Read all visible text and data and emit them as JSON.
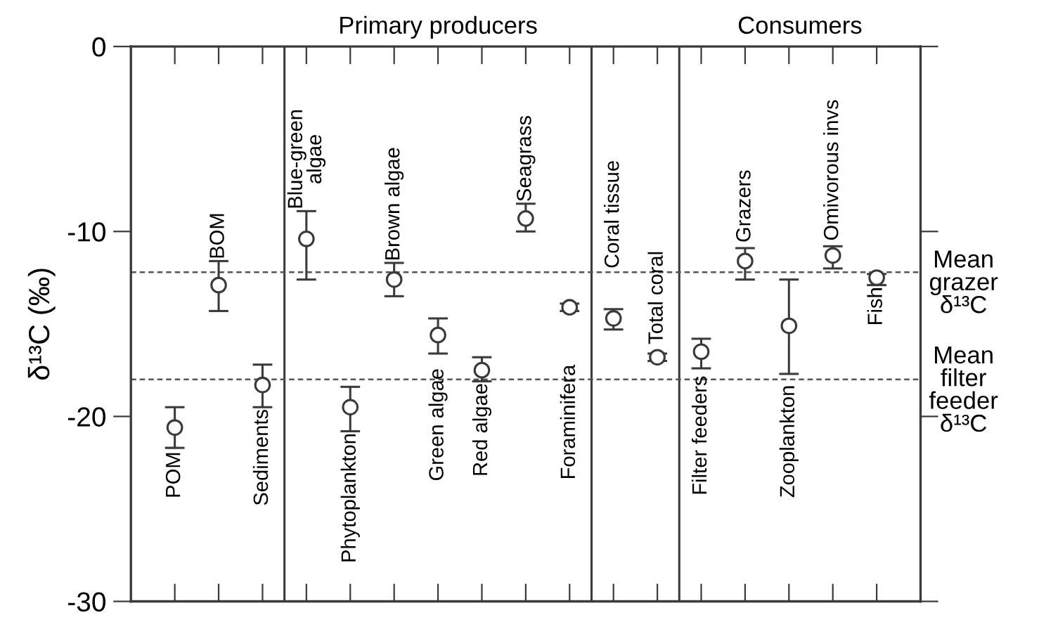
{
  "chart_data": {
    "type": "scatter",
    "ylabel": "δ¹³C (‰)",
    "categories": [
      null,
      null,
      null,
      null,
      null,
      null,
      null,
      null,
      null,
      null,
      null,
      null,
      null,
      null,
      null,
      null,
      null
    ],
    "values": [
      -20.6,
      -12.9,
      -18.3,
      -10.4,
      -19.5,
      -12.6,
      -15.6,
      -17.5,
      -9.3,
      -14.1,
      -14.7,
      -16.8,
      -16.5,
      -11.6,
      -15.1,
      -11.3,
      -12.5
    ],
    "errors": [
      [
        -21.7,
        -19.5
      ],
      [
        -14.3,
        -11.6
      ],
      [
        -19.5,
        -17.2
      ],
      [
        -12.6,
        -8.9
      ],
      [
        -20.8,
        -18.4
      ],
      [
        -13.5,
        -11.7
      ],
      [
        -16.6,
        -14.7
      ],
      [
        -18.1,
        -16.8
      ],
      [
        -10.0,
        -8.5
      ],
      [
        -14.3,
        -13.9
      ],
      [
        -15.3,
        -14.2
      ],
      [
        -17.0,
        -16.6
      ],
      [
        -17.4,
        -15.8
      ],
      [
        -12.6,
        -10.9
      ],
      [
        -17.7,
        -12.6
      ],
      [
        -12.0,
        -10.8
      ],
      [
        -12.9,
        -12.3
      ]
    ],
    "color": "#3a3a3a",
    "marker": "circle",
    "ylim": [
      -30,
      0
    ],
    "yticks": [
      -30,
      -20,
      -10,
      0
    ],
    "tick_labels": "y",
    "ref_lines": [
      {
        "axis": "y",
        "value": -12.2,
        "label": "Mean\ngrazer\nδ¹³C",
        "color": "#555555",
        "line_style": "dashed"
      },
      {
        "axis": "y",
        "value": -18.0,
        "label": "Mean\nfilter\nfeeder\nδ¹³C",
        "color": "#555555",
        "line_style": "dashed"
      }
    ],
    "annotations": [
      "Primary producers",
      "Consumers",
      "POM",
      "BOM",
      "Sediments",
      "Blue-green\nalgae",
      "Phytoplankton",
      "Brown algae",
      "Green algae",
      "Red algae",
      "Seagrass",
      "Foraminifera",
      "Coral tissue",
      "Total coral",
      "Filter feeders",
      "Grazers",
      "Zooplankton",
      "Omivorous invs",
      "Fish"
    ]
  }
}
